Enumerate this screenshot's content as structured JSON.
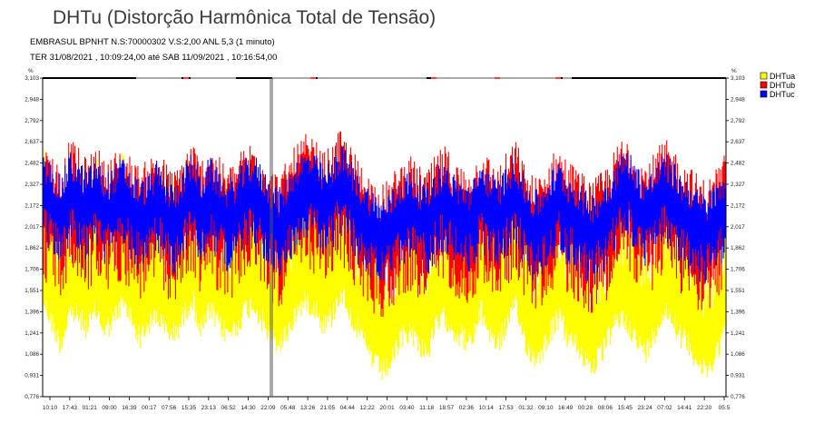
{
  "header": {
    "title": "DHTu (Distorção Harmônica Total de Tensão)",
    "device_line": "EMBRASUL BPNHT N.S:70000302  V.S:2,00 ANL 5,3 (1 minuto)",
    "period_line": "TER 31/08/2021 , 10:09:24,00 até SAB 11/09/2021 , 10:16:54,00"
  },
  "chart_data": {
    "type": "line",
    "title": "DHTu (Distorção Harmônica Total de Tensão)",
    "ylabel_left": "%",
    "ylabel_right": "%",
    "ylim": [
      0.776,
      3.103
    ],
    "yticks_left": [
      "3,103",
      "2,948",
      "2,792",
      "2,637",
      "2,482",
      "2,327",
      "2,172",
      "2,017",
      "1,862",
      "1,706",
      "1,551",
      "1,396",
      "1,241",
      "1,086",
      "0,931",
      "0,776"
    ],
    "yticks_right": [
      "3,103",
      "2,948",
      "2,792",
      "2,637",
      "2,482",
      "2,327",
      "2,172",
      "2,017",
      "1,862",
      "1,706",
      "1,551",
      "1,396",
      "1,241",
      "1,086",
      "0,931",
      "0,776"
    ],
    "xticks": [
      "10:10",
      "17:43",
      "01:21",
      "09:00",
      "16:39",
      "00:17",
      "07:56",
      "15:35",
      "23:13",
      "06:52",
      "14:30",
      "22:09",
      "05:48",
      "13:26",
      "21:05",
      "04:44",
      "12:22",
      "20:01",
      "03:40",
      "11:18",
      "18:57",
      "02:36",
      "10:14",
      "17:53",
      "01:32",
      "09:10",
      "16:49",
      "00:28",
      "08:06",
      "15:45",
      "23:24",
      "07:02",
      "14:41",
      "22:20",
      "05:5"
    ],
    "grid": false,
    "legend_position": "right",
    "colors": {
      "DHTua": "#ffff00",
      "DHTub": "#ff0000",
      "DHTuc": "#0000ff"
    },
    "series": [
      {
        "name": "DHTua",
        "values": [
          1.62,
          1.45,
          1.3,
          1.55,
          1.5,
          1.42,
          1.55,
          1.4,
          1.48,
          1.6,
          1.5,
          1.35,
          1.45,
          1.52,
          1.4,
          1.38,
          1.5,
          1.65,
          1.4,
          1.55,
          1.45,
          1.38,
          1.42,
          1.55,
          1.6,
          1.48,
          1.35,
          1.3,
          1.4,
          1.55,
          1.62,
          1.58,
          1.45,
          1.5,
          1.7,
          1.55,
          1.4,
          1.28,
          1.15,
          1.1,
          1.2,
          1.35,
          1.4,
          1.3,
          1.25,
          1.45,
          1.5,
          1.4,
          1.35,
          1.3,
          1.55,
          1.4,
          1.3,
          1.45,
          1.58,
          1.35,
          1.2,
          1.25,
          1.4,
          1.5,
          1.35,
          1.3,
          1.2,
          1.15,
          1.25,
          1.4,
          1.5,
          1.45,
          1.3,
          1.25,
          1.4,
          1.55,
          1.5,
          1.35,
          1.3,
          1.15,
          1.1,
          1.25,
          1.4
        ]
      },
      {
        "name": "DHTub",
        "values": [
          2.2,
          2.15,
          2.05,
          2.25,
          2.18,
          2.1,
          2.22,
          2.08,
          2.15,
          2.2,
          2.12,
          2.05,
          2.1,
          2.2,
          2.08,
          2.02,
          2.15,
          2.25,
          2.1,
          2.22,
          2.12,
          2.05,
          2.1,
          2.2,
          2.25,
          2.15,
          2.05,
          2.0,
          2.1,
          2.22,
          2.28,
          2.25,
          2.15,
          2.2,
          2.32,
          2.22,
          2.1,
          2.02,
          1.95,
          1.92,
          2.0,
          2.1,
          2.12,
          2.05,
          2.02,
          2.15,
          2.2,
          2.1,
          2.05,
          2.02,
          2.2,
          2.12,
          2.05,
          2.15,
          2.25,
          2.08,
          1.98,
          2.0,
          2.12,
          2.2,
          2.1,
          2.05,
          1.98,
          1.95,
          2.02,
          2.12,
          2.25,
          2.28,
          2.15,
          2.08,
          2.15,
          2.25,
          2.2,
          2.1,
          2.05,
          1.98,
          1.95,
          2.05,
          2.15
        ]
      },
      {
        "name": "DHTuc",
        "values": [
          2.25,
          2.2,
          2.1,
          2.28,
          2.22,
          2.15,
          2.25,
          2.12,
          2.18,
          2.25,
          2.15,
          2.08,
          2.12,
          2.22,
          2.1,
          2.05,
          2.18,
          2.28,
          2.12,
          2.25,
          2.15,
          2.08,
          2.12,
          2.22,
          2.28,
          2.18,
          2.08,
          2.02,
          2.12,
          2.25,
          2.3,
          2.28,
          2.18,
          2.22,
          2.35,
          2.25,
          2.12,
          2.05,
          1.98,
          1.95,
          2.02,
          2.12,
          2.15,
          2.08,
          2.05,
          2.18,
          2.22,
          2.12,
          2.08,
          2.05,
          2.22,
          2.15,
          2.08,
          2.18,
          2.28,
          2.1,
          2.0,
          2.02,
          2.15,
          2.22,
          2.12,
          2.08,
          2.0,
          1.98,
          2.05,
          2.15,
          2.28,
          2.3,
          2.18,
          2.1,
          2.18,
          2.28,
          2.22,
          2.12,
          2.08,
          2.0,
          1.98,
          2.08,
          2.18
        ]
      }
    ]
  }
}
